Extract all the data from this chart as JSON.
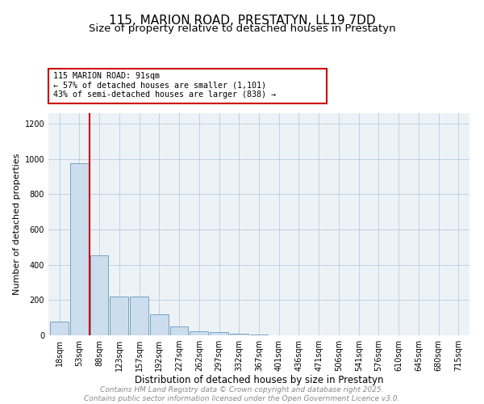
{
  "title1": "115, MARION ROAD, PRESTATYN, LL19 7DD",
  "title2": "Size of property relative to detached houses in Prestatyn",
  "xlabel": "Distribution of detached houses by size in Prestatyn",
  "ylabel": "Number of detached properties",
  "categories": [
    "18sqm",
    "53sqm",
    "88sqm",
    "123sqm",
    "157sqm",
    "192sqm",
    "227sqm",
    "262sqm",
    "297sqm",
    "332sqm",
    "367sqm",
    "401sqm",
    "436sqm",
    "471sqm",
    "506sqm",
    "541sqm",
    "576sqm",
    "610sqm",
    "645sqm",
    "680sqm",
    "715sqm"
  ],
  "values": [
    80,
    975,
    455,
    222,
    222,
    120,
    50,
    25,
    20,
    10,
    5,
    0,
    0,
    0,
    0,
    0,
    0,
    0,
    0,
    0,
    0
  ],
  "bar_color": "#ccdded",
  "bar_edge_color": "#6699bb",
  "red_line_index": 2,
  "red_line_color": "#cc0000",
  "annotation_line1": "115 MARION ROAD: 91sqm",
  "annotation_line2": "← 57% of detached houses are smaller (1,101)",
  "annotation_line3": "43% of semi-detached houses are larger (838) →",
  "annotation_box_color": "#cc0000",
  "ylim": [
    0,
    1260
  ],
  "yticks": [
    0,
    200,
    400,
    600,
    800,
    1000,
    1200
  ],
  "footer1": "Contains HM Land Registry data © Crown copyright and database right 2025.",
  "footer2": "Contains public sector information licensed under the Open Government Licence v3.0.",
  "bg_color": "#edf2f7",
  "grid_color": "#b8cde0",
  "title1_fontsize": 11,
  "title2_fontsize": 9.5,
  "xlabel_fontsize": 8.5,
  "ylabel_fontsize": 8,
  "tick_fontsize": 7,
  "footer_fontsize": 6.5
}
